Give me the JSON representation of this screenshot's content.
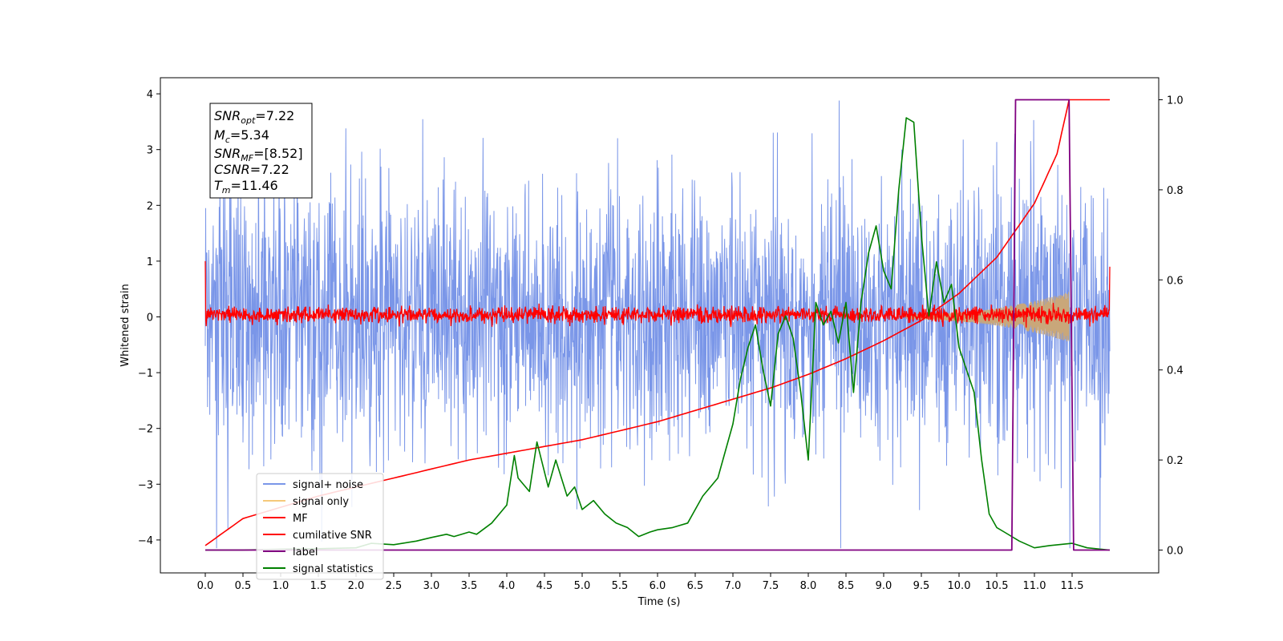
{
  "chart_data": {
    "type": "line",
    "xlabel": "Time (s)",
    "ylabel": "Whitened strain",
    "xlim": [
      -0.6,
      12.6
    ],
    "ylim": [
      -4.55,
      4.3
    ],
    "ylim_right": [
      -0.05,
      1.05
    ],
    "x_ticks": [
      "0.0",
      "0.5",
      "1.0",
      "1.5",
      "2.0",
      "2.5",
      "3.0",
      "3.5",
      "4.0",
      "4.5",
      "5.0",
      "5.5",
      "6.0",
      "6.5",
      "7.0",
      "7.5",
      "8.0",
      "8.5",
      "9.0",
      "9.5",
      "10.0",
      "10.5",
      "11.0",
      "11.5"
    ],
    "y_ticks_left": [
      "4",
      "3",
      "2",
      "1",
      "0",
      "−1",
      "−2",
      "−3",
      "−4"
    ],
    "y_ticks_right": [
      "1.0",
      "0.8",
      "0.6",
      "0.4",
      "0.2",
      "0.0"
    ],
    "grid": false,
    "legend_position": "lower-left",
    "info_box": {
      "snr_opt": "=7.22",
      "mc": "=5.34",
      "snr_mf": "=[8.52]",
      "csnr": "=7.22",
      "tm": "=11.46"
    },
    "series": [
      {
        "name": "signal+ noise",
        "axis": "left",
        "color": "#7a96e8",
        "description_values": {
          "t_start": 0.0,
          "t_end": 12.0,
          "typical_range": [
            -2.0,
            2.0
          ],
          "max": 3.88,
          "min": -4.15
        }
      },
      {
        "name": "signal only",
        "axis": "left",
        "color": "#f5c97a",
        "description_values": {
          "t_start": 9.3,
          "t_end": 11.46,
          "amplitude_start": 0.05,
          "amplitude_end": 0.45
        }
      },
      {
        "name": "MF",
        "axis": "left",
        "color": "#ff0000",
        "description_values": {
          "t_start": 0.0,
          "t_end": 12.0,
          "typical_range": [
            -0.15,
            0.25
          ],
          "edge_values": [
            1.0,
            0.9
          ]
        }
      },
      {
        "name": "cumilative SNR",
        "axis": "right",
        "color": "#ff0000",
        "x": [
          0.0,
          0.5,
          1.0,
          1.5,
          2.0,
          2.5,
          3.0,
          3.5,
          4.0,
          4.5,
          5.0,
          5.5,
          6.0,
          6.5,
          7.0,
          7.5,
          8.0,
          8.5,
          9.0,
          9.5,
          10.0,
          10.5,
          11.0,
          11.3,
          11.46,
          12.0
        ],
        "values": [
          0.01,
          0.07,
          0.095,
          0.12,
          0.14,
          0.16,
          0.18,
          0.2,
          0.215,
          0.23,
          0.245,
          0.265,
          0.285,
          0.31,
          0.335,
          0.36,
          0.39,
          0.425,
          0.465,
          0.51,
          0.57,
          0.65,
          0.77,
          0.88,
          1.0,
          1.0
        ]
      },
      {
        "name": "label",
        "axis": "right",
        "color": "#800080",
        "x": [
          0.0,
          10.7,
          10.75,
          11.46,
          11.52,
          12.0
        ],
        "values": [
          0.0,
          0.0,
          1.0,
          1.0,
          0.0,
          0.0
        ]
      },
      {
        "name": "signal statistics",
        "axis": "right",
        "color": "#008000",
        "x": [
          0.0,
          0.5,
          1.0,
          1.5,
          2.0,
          2.2,
          2.5,
          2.8,
          3.0,
          3.2,
          3.3,
          3.5,
          3.6,
          3.8,
          4.0,
          4.1,
          4.15,
          4.3,
          4.4,
          4.55,
          4.65,
          4.8,
          4.9,
          5.0,
          5.15,
          5.3,
          5.45,
          5.6,
          5.75,
          5.9,
          6.0,
          6.2,
          6.4,
          6.6,
          6.8,
          7.0,
          7.1,
          7.2,
          7.3,
          7.4,
          7.5,
          7.6,
          7.7,
          7.8,
          7.9,
          8.0,
          8.1,
          8.2,
          8.3,
          8.4,
          8.5,
          8.6,
          8.7,
          8.8,
          8.9,
          9.0,
          9.1,
          9.2,
          9.3,
          9.4,
          9.5,
          9.6,
          9.7,
          9.8,
          9.9,
          10.0,
          10.1,
          10.2,
          10.3,
          10.4,
          10.5,
          10.6,
          10.8,
          11.0,
          11.2,
          11.5,
          11.7,
          12.0
        ],
        "values": [
          0.0,
          0.0,
          0.002,
          0.003,
          0.005,
          0.015,
          0.012,
          0.02,
          0.028,
          0.035,
          0.03,
          0.04,
          0.035,
          0.06,
          0.1,
          0.21,
          0.16,
          0.13,
          0.24,
          0.14,
          0.2,
          0.12,
          0.14,
          0.09,
          0.11,
          0.08,
          0.06,
          0.05,
          0.03,
          0.04,
          0.045,
          0.05,
          0.06,
          0.12,
          0.16,
          0.28,
          0.38,
          0.45,
          0.5,
          0.4,
          0.32,
          0.48,
          0.52,
          0.47,
          0.35,
          0.2,
          0.55,
          0.5,
          0.53,
          0.46,
          0.55,
          0.35,
          0.55,
          0.66,
          0.72,
          0.62,
          0.58,
          0.8,
          0.96,
          0.95,
          0.7,
          0.52,
          0.64,
          0.55,
          0.59,
          0.45,
          0.4,
          0.35,
          0.2,
          0.08,
          0.05,
          0.04,
          0.02,
          0.005,
          0.01,
          0.015,
          0.005,
          0.0
        ]
      }
    ]
  }
}
